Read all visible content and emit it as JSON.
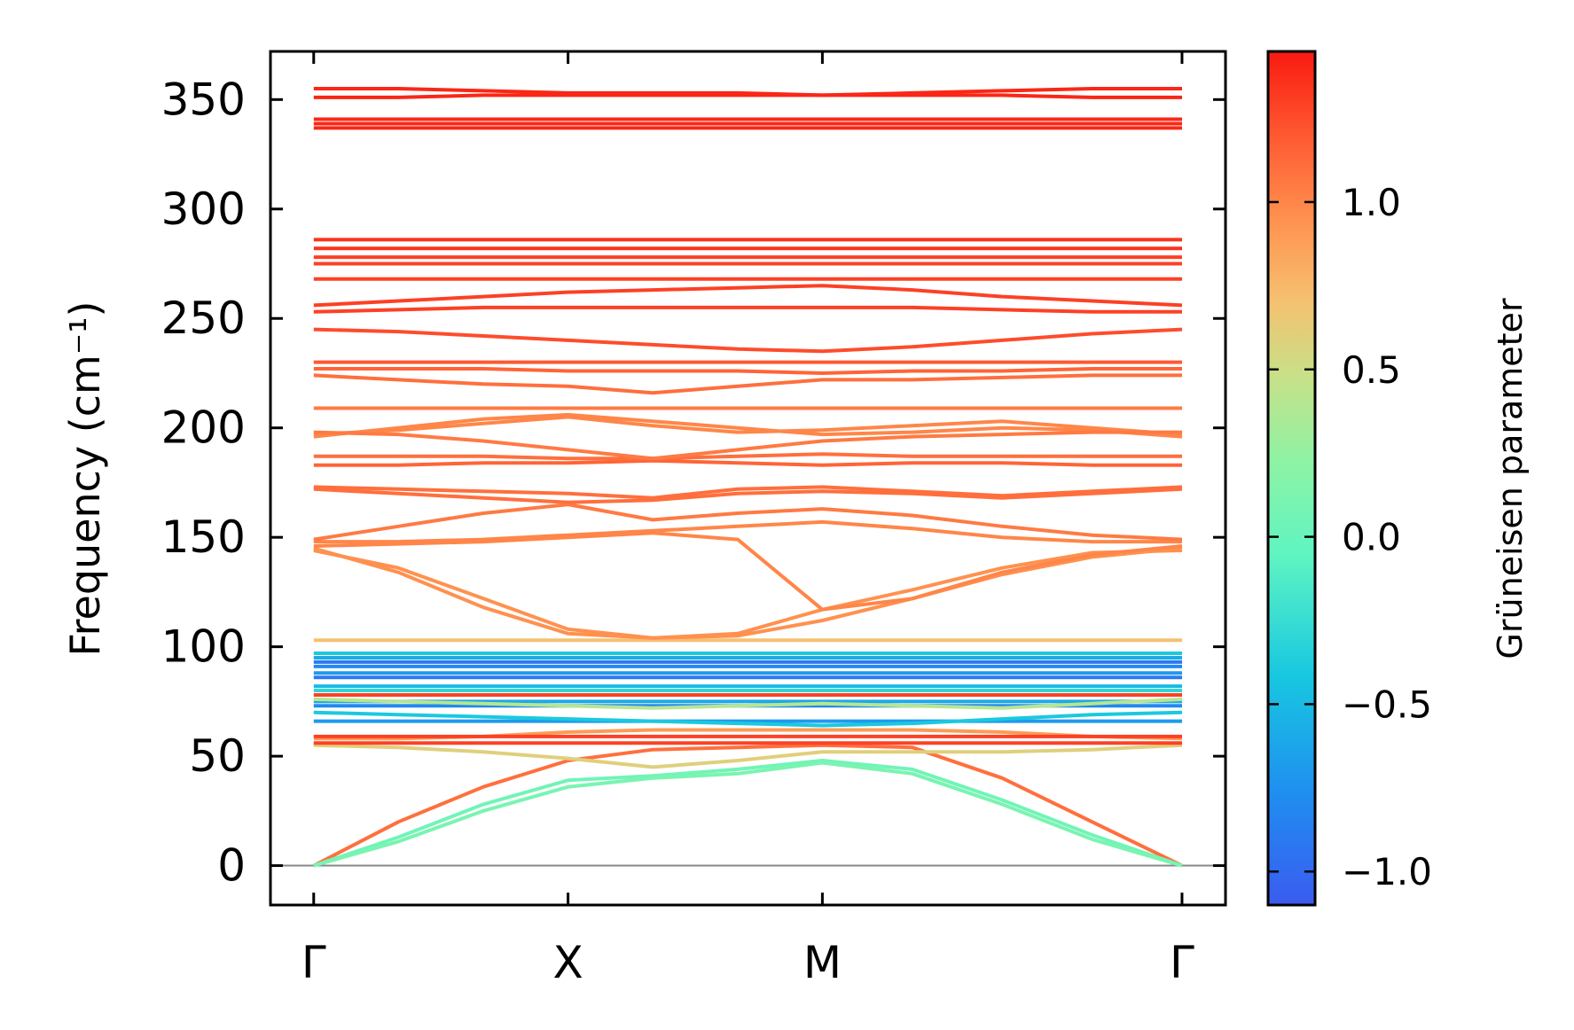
{
  "chart_data": {
    "type": "line",
    "ylabel": "Frequency (cm⁻¹)",
    "ylim": [
      -18,
      372
    ],
    "yticks": [
      0,
      50,
      100,
      150,
      200,
      250,
      300,
      350
    ],
    "ytick_labels": [
      "0",
      "50",
      "100",
      "150",
      "200",
      "250",
      "300",
      "350"
    ],
    "xticks": [
      {
        "label": "Γ",
        "pos": 0
      },
      {
        "label": "X",
        "pos": 1
      },
      {
        "label": "M",
        "pos": 2
      },
      {
        "label": "Γ",
        "pos": 3.414
      }
    ],
    "xlim": [
      -0.17,
      3.585
    ],
    "zero_line": true,
    "colorbar": {
      "label": "Grüneisen parameter",
      "range": [
        -1.1,
        1.45
      ],
      "ticks": [
        -1.0,
        -0.5,
        0.0,
        0.5,
        1.0
      ],
      "tick_labels": [
        "−1.0",
        "−0.5",
        "0.0",
        "0.5",
        "1.0"
      ],
      "colormap": "rainbow"
    },
    "series": [
      {
        "gamma": 1.1,
        "values": [
          0,
          20,
          36,
          48,
          53,
          54,
          55,
          54,
          40,
          20,
          0
        ]
      },
      {
        "gamma": 0.05,
        "values": [
          0,
          13,
          28,
          39,
          41,
          44,
          48,
          44,
          30,
          14,
          0
        ]
      },
      {
        "gamma": 0.1,
        "values": [
          0,
          11,
          25,
          36,
          40,
          42,
          47,
          42,
          28,
          12,
          0
        ]
      },
      {
        "gamma": 0.6,
        "values": [
          55,
          54,
          52,
          49,
          45,
          48,
          52,
          52,
          52,
          53,
          55
        ]
      },
      {
        "gamma": 0.9,
        "values": [
          58,
          58,
          59,
          61,
          62,
          62,
          62,
          62,
          61,
          59,
          58
        ]
      },
      {
        "gamma": 1.3,
        "values": [
          56,
          56,
          56,
          56,
          56,
          56,
          56,
          56,
          56,
          56,
          56
        ]
      },
      {
        "gamma": 1.3,
        "values": [
          59,
          59,
          59,
          59,
          59,
          59,
          59,
          59,
          59,
          59,
          59
        ]
      },
      {
        "gamma": -0.7,
        "values": [
          66,
          66,
          66,
          66,
          66,
          66,
          66,
          66,
          66,
          66,
          66
        ]
      },
      {
        "gamma": -0.4,
        "values": [
          70,
          69,
          68,
          67,
          66,
          65,
          64,
          65,
          67,
          69,
          70
        ]
      },
      {
        "gamma": -0.8,
        "values": [
          73,
          73,
          73,
          73,
          73,
          73,
          73,
          73,
          73,
          73,
          73
        ]
      },
      {
        "gamma": -0.6,
        "values": [
          75,
          75,
          75,
          75,
          75,
          75,
          75,
          75,
          75,
          75,
          75
        ]
      },
      {
        "gamma": 0.4,
        "values": [
          76,
          75,
          74,
          73,
          72,
          73,
          74,
          73,
          72,
          74,
          76
        ]
      },
      {
        "gamma": 1.3,
        "values": [
          78,
          78,
          78,
          78,
          78,
          78,
          78,
          78,
          78,
          78,
          78
        ]
      },
      {
        "gamma": -0.3,
        "values": [
          80,
          80,
          80,
          80,
          80,
          80,
          80,
          80,
          80,
          80,
          80
        ]
      },
      {
        "gamma": -0.5,
        "values": [
          82,
          82,
          82,
          82,
          82,
          82,
          82,
          82,
          82,
          82,
          82
        ]
      },
      {
        "gamma": -0.9,
        "values": [
          86,
          86,
          86,
          86,
          86,
          86,
          86,
          86,
          86,
          86,
          86
        ]
      },
      {
        "gamma": -0.7,
        "values": [
          88,
          88,
          88,
          88,
          88,
          88,
          88,
          88,
          88,
          88,
          88
        ]
      },
      {
        "gamma": -0.8,
        "values": [
          91,
          91,
          91,
          91,
          91,
          91,
          91,
          91,
          91,
          91,
          91
        ]
      },
      {
        "gamma": -0.9,
        "values": [
          93,
          93,
          93,
          93,
          93,
          93,
          93,
          93,
          93,
          93,
          93
        ]
      },
      {
        "gamma": -0.6,
        "values": [
          95,
          95,
          95,
          95,
          95,
          95,
          95,
          95,
          95,
          95,
          95
        ]
      },
      {
        "gamma": -0.4,
        "values": [
          97,
          97,
          97,
          97,
          97,
          97,
          97,
          97,
          97,
          97,
          97
        ]
      },
      {
        "gamma": 0.7,
        "values": [
          103,
          103,
          103,
          103,
          103,
          103,
          103,
          103,
          103,
          103,
          103
        ]
      },
      {
        "gamma": 0.95,
        "values": [
          144,
          136,
          122,
          108,
          104,
          106,
          117,
          126,
          136,
          143,
          144
        ]
      },
      {
        "gamma": 0.95,
        "values": [
          145,
          134,
          118,
          106,
          104,
          105,
          112,
          122,
          133,
          141,
          145
        ]
      },
      {
        "gamma": 1.0,
        "values": [
          146,
          147,
          148,
          150,
          152,
          149,
          117,
          122,
          134,
          142,
          146
        ]
      },
      {
        "gamma": 1.0,
        "values": [
          148,
          148,
          149,
          151,
          153,
          155,
          157,
          154,
          150,
          148,
          148
        ]
      },
      {
        "gamma": 1.05,
        "values": [
          149,
          155,
          161,
          165,
          158,
          161,
          163,
          160,
          155,
          151,
          149
        ]
      },
      {
        "gamma": 1.1,
        "values": [
          172,
          170,
          168,
          166,
          167,
          170,
          171,
          170,
          168,
          170,
          172
        ]
      },
      {
        "gamma": 1.1,
        "values": [
          173,
          172,
          171,
          170,
          168,
          172,
          173,
          171,
          169,
          171,
          173
        ]
      },
      {
        "gamma": 1.15,
        "values": [
          183,
          183,
          184,
          184,
          185,
          184,
          183,
          184,
          184,
          183,
          183
        ]
      },
      {
        "gamma": 1.1,
        "values": [
          187,
          187,
          187,
          186,
          186,
          187,
          188,
          187,
          187,
          187,
          187
        ]
      },
      {
        "gamma": 1.0,
        "values": [
          196,
          200,
          204,
          206,
          203,
          200,
          197,
          198,
          200,
          199,
          196
        ]
      },
      {
        "gamma": 1.0,
        "values": [
          197,
          199,
          202,
          205,
          201,
          198,
          199,
          201,
          203,
          200,
          197
        ]
      },
      {
        "gamma": 1.05,
        "values": [
          198,
          197,
          194,
          190,
          186,
          190,
          194,
          196,
          197,
          198,
          198
        ]
      },
      {
        "gamma": 1.05,
        "values": [
          209,
          209,
          209,
          209,
          209,
          209,
          209,
          209,
          209,
          209,
          209
        ]
      },
      {
        "gamma": 1.1,
        "values": [
          224,
          222,
          220,
          219,
          216,
          219,
          222,
          222,
          223,
          224,
          224
        ]
      },
      {
        "gamma": 1.15,
        "values": [
          227,
          227,
          227,
          226,
          226,
          226,
          225,
          226,
          226,
          227,
          227
        ]
      },
      {
        "gamma": 1.2,
        "values": [
          230,
          230,
          230,
          230,
          230,
          230,
          230,
          230,
          230,
          230,
          230
        ]
      },
      {
        "gamma": 1.25,
        "values": [
          245,
          244,
          242,
          240,
          238,
          236,
          235,
          237,
          240,
          243,
          245
        ]
      },
      {
        "gamma": 1.3,
        "values": [
          253,
          254,
          255,
          255,
          255,
          255,
          255,
          255,
          254,
          253,
          253
        ]
      },
      {
        "gamma": 1.3,
        "values": [
          256,
          258,
          260,
          262,
          263,
          264,
          265,
          263,
          260,
          258,
          256
        ]
      },
      {
        "gamma": 1.3,
        "values": [
          268,
          268,
          268,
          268,
          268,
          268,
          268,
          268,
          268,
          268,
          268
        ]
      },
      {
        "gamma": 1.3,
        "values": [
          275,
          275,
          275,
          275,
          275,
          275,
          275,
          275,
          275,
          275,
          275
        ]
      },
      {
        "gamma": 1.3,
        "values": [
          278,
          278,
          278,
          278,
          278,
          278,
          278,
          278,
          278,
          278,
          278
        ]
      },
      {
        "gamma": 1.35,
        "values": [
          282,
          282,
          282,
          282,
          282,
          282,
          282,
          282,
          282,
          282,
          282
        ]
      },
      {
        "gamma": 1.35,
        "values": [
          286,
          286,
          286,
          286,
          286,
          286,
          286,
          286,
          286,
          286,
          286
        ]
      },
      {
        "gamma": 1.4,
        "values": [
          337,
          337,
          337,
          337,
          337,
          337,
          337,
          337,
          337,
          337,
          337
        ]
      },
      {
        "gamma": 1.4,
        "values": [
          339,
          339,
          339,
          339,
          339,
          339,
          339,
          339,
          339,
          339,
          339
        ]
      },
      {
        "gamma": 1.4,
        "values": [
          341,
          341,
          341,
          341,
          341,
          341,
          341,
          341,
          341,
          341,
          341
        ]
      },
      {
        "gamma": 1.4,
        "values": [
          351,
          351,
          352,
          352,
          352,
          352,
          352,
          352,
          352,
          351,
          351
        ]
      },
      {
        "gamma": 1.4,
        "values": [
          355,
          355,
          354,
          353,
          353,
          353,
          352,
          353,
          354,
          355,
          355
        ]
      }
    ]
  }
}
